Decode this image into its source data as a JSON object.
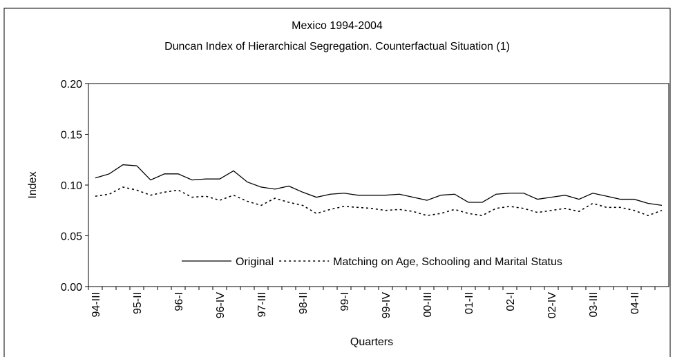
{
  "chart_data": {
    "type": "line",
    "title": "Mexico 1994-2004",
    "subtitle": "Duncan Index of Hierarchical Segregation. Counterfactual Situation (1)",
    "y_label": "Index",
    "x_label": "Quarters",
    "categories": [
      "94-III",
      null,
      null,
      "95-II",
      null,
      null,
      "96-I",
      null,
      null,
      "96-IV",
      null,
      null,
      "97-III",
      null,
      null,
      "98-II",
      null,
      null,
      "99-I",
      null,
      null,
      "99-IV",
      null,
      null,
      "00-III",
      null,
      null,
      "01-II",
      null,
      null,
      "02-I",
      null,
      null,
      "02-IV",
      null,
      null,
      "03-III",
      null,
      null,
      "04-II",
      null,
      null
    ],
    "series": [
      {
        "name": "Original",
        "color": "#000000",
        "dash": "solid",
        "values": [
          0.107,
          0.111,
          0.12,
          0.119,
          0.105,
          0.111,
          0.111,
          0.105,
          0.106,
          0.106,
          0.114,
          0.103,
          0.098,
          0.096,
          0.099,
          0.093,
          0.088,
          0.091,
          0.092,
          0.09,
          0.09,
          0.09,
          0.091,
          0.088,
          0.085,
          0.09,
          0.091,
          0.083,
          0.083,
          0.091,
          0.092,
          0.092,
          0.086,
          0.088,
          0.09,
          0.086,
          0.092,
          0.089,
          0.086,
          0.086,
          0.082,
          0.08
        ]
      },
      {
        "name": "Matching on Age, Schooling and Marital Status",
        "color": "#000000",
        "dash": "dotted",
        "values": [
          0.089,
          0.091,
          0.098,
          0.095,
          0.09,
          0.093,
          0.095,
          0.088,
          0.089,
          0.085,
          0.09,
          0.084,
          0.08,
          0.087,
          0.083,
          0.08,
          0.072,
          0.076,
          0.079,
          0.078,
          0.077,
          0.075,
          0.076,
          0.074,
          0.07,
          0.072,
          0.076,
          0.072,
          0.07,
          0.077,
          0.079,
          0.077,
          0.073,
          0.075,
          0.077,
          0.074,
          0.082,
          0.078,
          0.078,
          0.075,
          0.07,
          0.075
        ]
      }
    ],
    "ylim": [
      0,
      0.2
    ],
    "yticks": [
      {
        "value": 0,
        "label": "0.00"
      },
      {
        "value": 0.05,
        "label": "0.05"
      },
      {
        "value": 0.1,
        "label": "0.10"
      },
      {
        "value": 0.15,
        "label": "0.15"
      },
      {
        "value": 0.2,
        "label": "0.20"
      }
    ],
    "grid": false,
    "legend": "bottom"
  }
}
